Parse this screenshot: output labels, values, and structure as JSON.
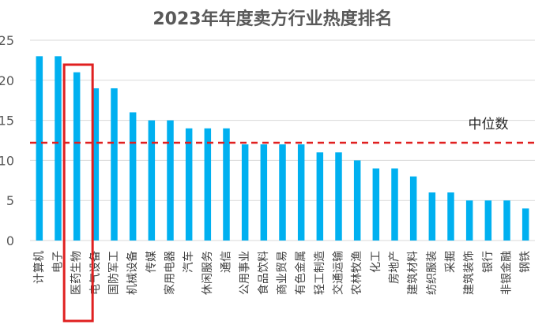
{
  "chart_data": {
    "type": "bar",
    "title": "2023年年度卖方行业热度排名",
    "xlabel": "",
    "ylabel": "",
    "ylim": [
      0,
      25
    ],
    "yticks": [
      0,
      5,
      10,
      15,
      20,
      25
    ],
    "grid": true,
    "bar_color": "#00B0F0",
    "categories": [
      "计算机",
      "电子",
      "医药生物",
      "电气设备",
      "国防军工",
      "机械设备",
      "传媒",
      "家用电器",
      "汽车",
      "休闲服务",
      "通信",
      "公用事业",
      "食品饮料",
      "商业贸易",
      "有色金属",
      "轻工制造",
      "交通运输",
      "农林牧渔",
      "化工",
      "房地产",
      "建筑材料",
      "纺织服装",
      "采掘",
      "建筑装饰",
      "银行",
      "非银金融",
      "钢铁"
    ],
    "values": [
      23,
      23,
      21,
      19,
      19,
      16,
      15,
      15,
      14,
      14,
      14,
      12,
      12,
      12,
      12,
      11,
      11,
      10,
      9,
      9,
      8,
      6,
      6,
      5,
      5,
      5,
      4
    ],
    "reference_line": {
      "label": "中位数",
      "value": 12.2,
      "color": "#E02020",
      "style": "dashed"
    },
    "highlight": {
      "category": "医药生物",
      "color": "#E02020"
    }
  }
}
